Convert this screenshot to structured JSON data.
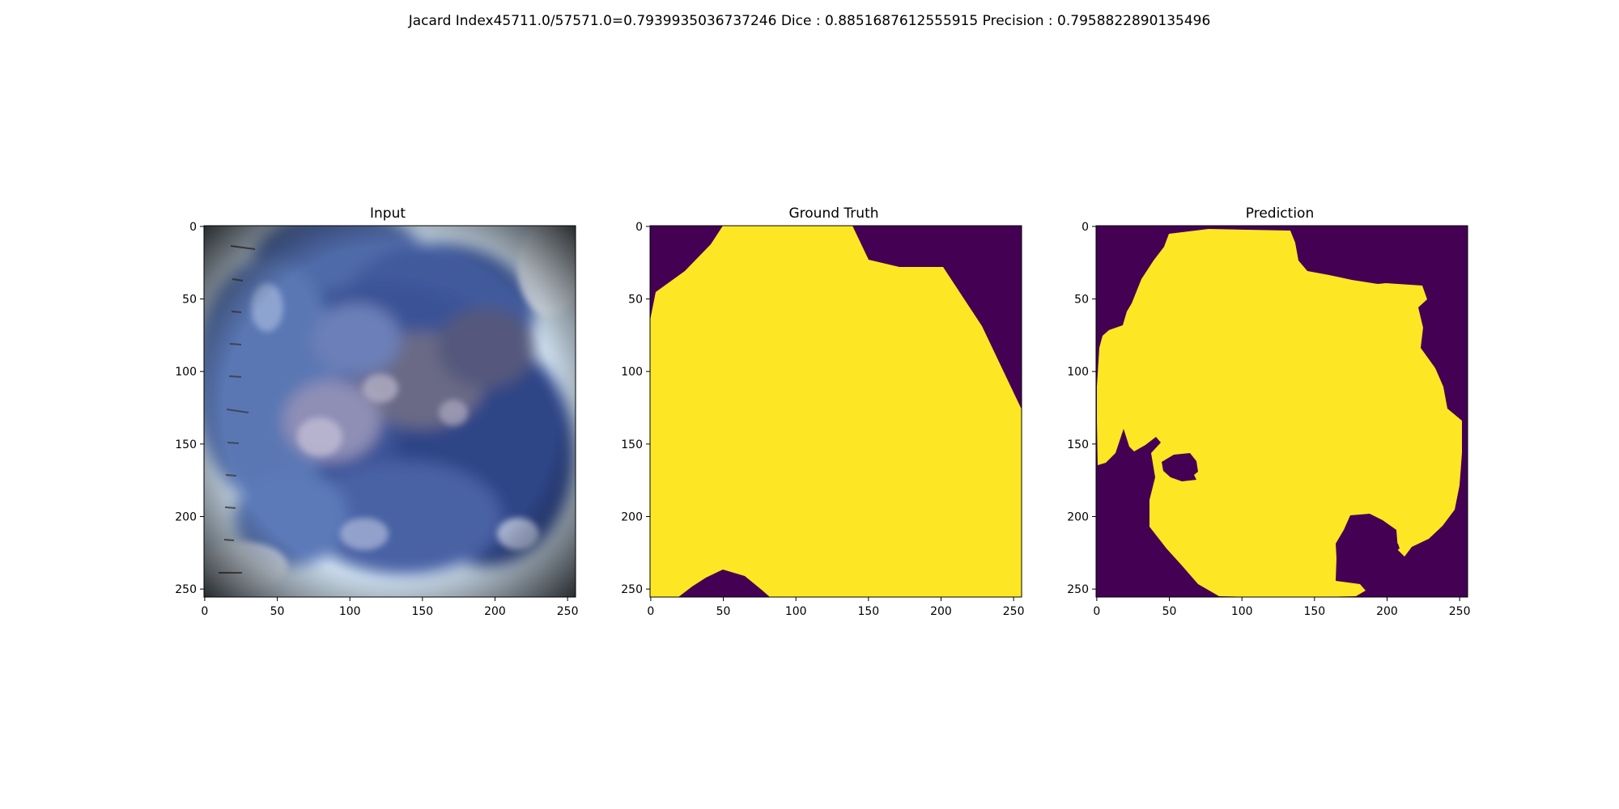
{
  "suptitle": "Jacard Index45711.0/57571.0=0.7939935036737246 Dice : 0.8851687612555915 Precision : 0.7958822890135496",
  "panels": [
    {
      "title": "Input"
    },
    {
      "title": "Ground Truth"
    },
    {
      "title": "Prediction"
    }
  ],
  "axis": {
    "x_ticks": [
      "0",
      "50",
      "100",
      "150",
      "200",
      "250"
    ],
    "y_ticks": [
      "0",
      "50",
      "100",
      "150",
      "200",
      "250"
    ],
    "range": [
      0,
      255
    ]
  },
  "colors": {
    "mask_foreground": "#fde725",
    "mask_background": "#440154"
  }
}
